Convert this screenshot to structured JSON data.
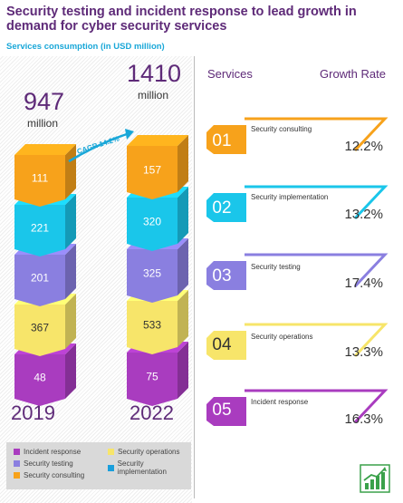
{
  "title": "Security testing and incident response to lead growth in demand for cyber security services",
  "subtitle": "Services consumption (in USD million)",
  "colors": {
    "incident_response": "#a93cbf",
    "security_testing": "#8a7fe0",
    "security_operations": "#f7e56a",
    "security_implementation": "#1ac6ea",
    "security_consulting": "#f7a21b",
    "accent_purple": "#5e2a78",
    "accent_blue": "#19a7d8"
  },
  "chart_data": {
    "type": "bar",
    "stacked": true,
    "categories": [
      "2019",
      "2022"
    ],
    "totals": [
      "947",
      "1410"
    ],
    "total_unit": "million",
    "cagr_label": "CAGR 14.2%",
    "series": [
      {
        "name": "Incident response",
        "values": [
          48,
          75
        ],
        "labels": [
          "48",
          "75"
        ],
        "color_key": "incident_response"
      },
      {
        "name": "Security operations",
        "values": [
          367,
          533
        ],
        "labels": [
          "367",
          "533"
        ],
        "color_key": "security_operations"
      },
      {
        "name": "Security testing",
        "values": [
          201,
          325
        ],
        "labels": [
          "201",
          "325"
        ],
        "color_key": "security_testing"
      },
      {
        "name": "Security implementation",
        "values": [
          221,
          320
        ],
        "labels": [
          "221",
          "320"
        ],
        "color_key": "security_implementation"
      },
      {
        "name": "Security consulting",
        "values": [
          111,
          157
        ],
        "labels": [
          "111",
          "157"
        ],
        "color_key": "security_consulting"
      }
    ],
    "legend": [
      {
        "label": "Incident response",
        "color_key": "incident_response"
      },
      {
        "label": "Security operations",
        "color_key": "security_operations"
      },
      {
        "label": "Security testing",
        "color_key": "security_testing"
      },
      {
        "label": "Security implementation",
        "color_key": "security_implementation"
      },
      {
        "label": "Security consulting",
        "color_key": "security_consulting"
      }
    ]
  },
  "services_header": {
    "services": "Services",
    "growth_rate": "Growth Rate"
  },
  "services": [
    {
      "num": "01",
      "name": "Security consulting",
      "rate": "12.2%",
      "color_key": "security_consulting"
    },
    {
      "num": "02",
      "name": "Security implementation",
      "rate": "13.2%",
      "color_key": "security_implementation"
    },
    {
      "num": "03",
      "name": "Security testing",
      "rate": "17.4%",
      "color_key": "security_testing"
    },
    {
      "num": "04",
      "name": "Security operations",
      "rate": "13.3%",
      "color_key": "security_operations"
    },
    {
      "num": "05",
      "name": "Incident response",
      "rate": "16.3%",
      "color_key": "incident_response"
    }
  ],
  "growth_icon": "growth-chart-icon"
}
